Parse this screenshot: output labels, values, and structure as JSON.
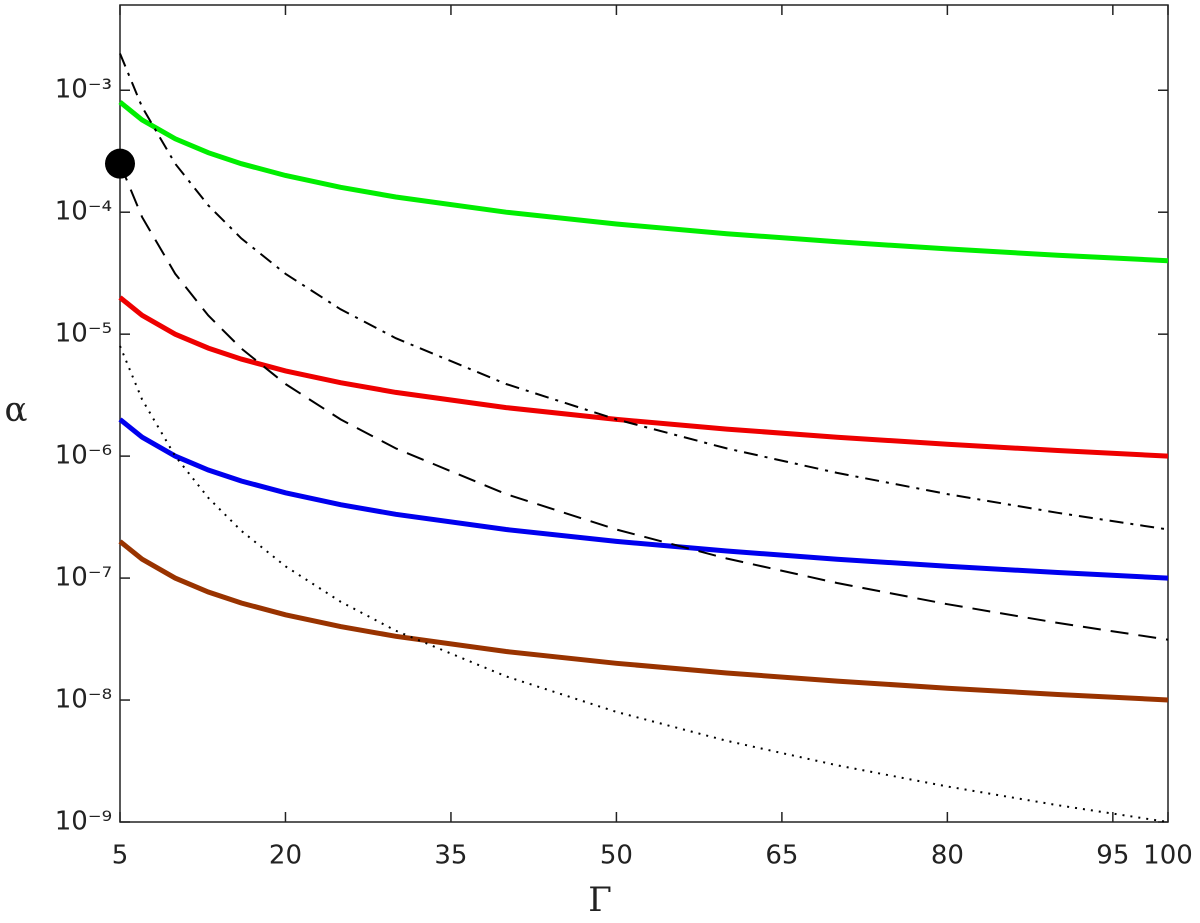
{
  "chart_data": {
    "type": "line",
    "xlabel": "Γ",
    "ylabel": "α",
    "x": [
      5,
      7,
      10,
      13,
      16,
      20,
      25,
      30,
      40,
      50,
      60,
      70,
      80,
      90,
      100
    ],
    "series": [
      {
        "color": "#00ee00",
        "style": "solid",
        "values": [
          0.0008,
          0.0005714,
          0.0004,
          0.0003077,
          0.00025,
          0.0002,
          0.00016,
          0.0001333,
          0.0001,
          8e-05,
          6.667e-05,
          5.714e-05,
          5e-05,
          4.444e-05,
          4e-05
        ]
      },
      {
        "color": "#ee0000",
        "style": "solid",
        "values": [
          2e-05,
          1.429e-05,
          1e-05,
          7.69e-06,
          6.25e-06,
          5e-06,
          4e-06,
          3.333e-06,
          2.5e-06,
          2e-06,
          1.667e-06,
          1.429e-06,
          1.25e-06,
          1.111e-06,
          1e-06
        ]
      },
      {
        "color": "#0000ee",
        "style": "solid",
        "values": [
          2e-06,
          1.429e-06,
          1e-06,
          7.69e-07,
          6.25e-07,
          5e-07,
          4e-07,
          3.333e-07,
          2.5e-07,
          2e-07,
          1.667e-07,
          1.429e-07,
          1.25e-07,
          1.111e-07,
          1e-07
        ]
      },
      {
        "color": "#993300",
        "style": "solid",
        "values": [
          2e-07,
          1.429e-07,
          1e-07,
          7.69e-08,
          6.25e-08,
          5e-08,
          4e-08,
          3.333e-08,
          2.5e-08,
          2e-08,
          1.667e-08,
          1.429e-08,
          1.25e-08,
          1.111e-08,
          1e-08
        ]
      },
      {
        "color": "#000000",
        "style": "dashdot",
        "values": [
          0.002,
          0.0007289,
          0.00025,
          0.0001138,
          6.104e-05,
          3.125e-05,
          1.6e-05,
          9.259e-06,
          3.906e-06,
          2e-06,
          1.157e-06,
          7.289e-07,
          4.883e-07,
          3.429e-07,
          2.5e-07
        ]
      },
      {
        "color": "#000000",
        "style": "dash",
        "values": [
          0.00025,
          9.111e-05,
          3.125e-05,
          1.422e-05,
          7.629e-06,
          3.906e-06,
          2e-06,
          1.157e-06,
          4.883e-07,
          2.5e-07,
          1.447e-07,
          9.111e-08,
          6.104e-08,
          4.287e-08,
          3.125e-08
        ]
      },
      {
        "color": "#000000",
        "style": "dot",
        "values": [
          8e-06,
          2.915e-06,
          1e-06,
          4.552e-07,
          2.441e-07,
          1.25e-07,
          6.4e-08,
          3.704e-08,
          1.563e-08,
          8e-09,
          4.63e-09,
          2.915e-09,
          1.953e-09,
          1.372e-09,
          1e-09
        ]
      }
    ],
    "points": [
      {
        "x": 5,
        "y": 0.00025,
        "color": "#000000"
      }
    ],
    "xlim": [
      5,
      100
    ],
    "xticks": [
      5,
      20,
      35,
      50,
      65,
      80,
      95,
      100
    ],
    "ylim": [
      1e-09,
      0.005
    ],
    "ylog": true,
    "yticks": [
      {
        "value": 1e-09,
        "label": "10⁻⁹"
      },
      {
        "value": 1e-08,
        "label": "10⁻⁸"
      },
      {
        "value": 1e-07,
        "label": "10⁻⁷"
      },
      {
        "value": 1e-06,
        "label": "10⁻⁶"
      },
      {
        "value": 1e-05,
        "label": "10⁻⁵"
      },
      {
        "value": 0.0001,
        "label": "10⁻⁴"
      },
      {
        "value": 0.001,
        "label": "10⁻³"
      }
    ]
  }
}
